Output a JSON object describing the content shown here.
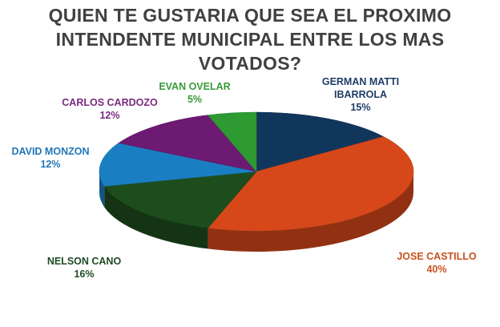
{
  "chart_data": {
    "type": "pie",
    "title_lines": [
      "QUIEN TE GUSTARIA QUE SEA EL PROXIMO",
      "INTENDENTE MUNICIPAL ENTRE LOS MAS",
      "VOTADOS?"
    ],
    "slices": [
      {
        "name": "GERMAN MATTI IBARROLA",
        "name_lines": [
          "GERMAN MATTI",
          "IBARROLA"
        ],
        "value": 15,
        "label": "15%",
        "color": "#11365c",
        "label_color": "#1f3d66"
      },
      {
        "name": "JOSE CASTILLO",
        "name_lines": [
          "JOSE CASTILLO"
        ],
        "value": 40,
        "label": "40%",
        "color": "#d6481a",
        "label_color": "#c9501e"
      },
      {
        "name": "NELSON CANO",
        "name_lines": [
          "NELSON CANO"
        ],
        "value": 16,
        "label": "16%",
        "color": "#1d4d1d",
        "label_color": "#1f4a24"
      },
      {
        "name": "DAVID MONZON",
        "name_lines": [
          "DAVID MONZON"
        ],
        "value": 12,
        "label": "12%",
        "color": "#1a7fc2",
        "label_color": "#2277b8"
      },
      {
        "name": "CARLOS CARDOZO",
        "name_lines": [
          "CARLOS CARDOZO"
        ],
        "value": 12,
        "label": "12%",
        "color": "#6d1a73",
        "label_color": "#7a2a80"
      },
      {
        "name": "EVAN OVELAR",
        "name_lines": [
          "EVAN OVELAR"
        ],
        "value": 5,
        "label": "5%",
        "color": "#2e9a32",
        "label_color": "#3a9a38"
      }
    ],
    "legend": "none"
  }
}
